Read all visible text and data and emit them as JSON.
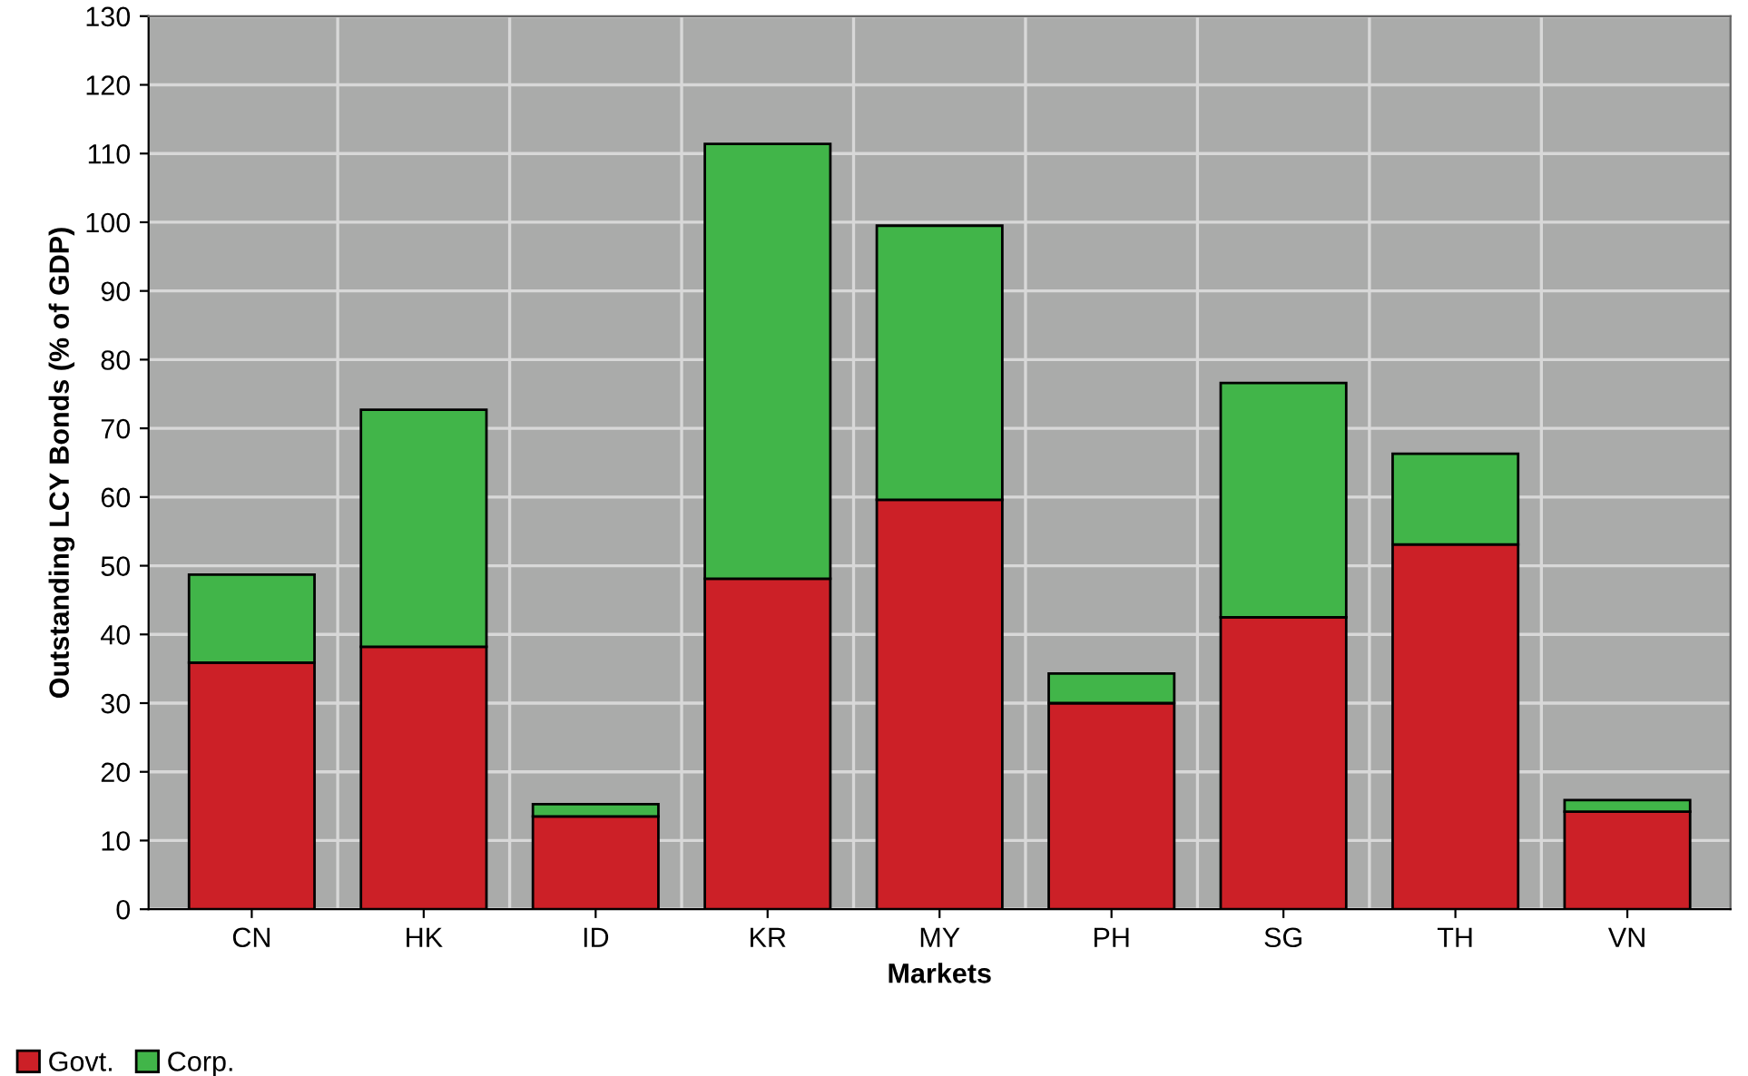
{
  "chart_data": {
    "type": "bar",
    "stacked": true,
    "xlabel": "Markets",
    "ylabel": "Outstanding LCY Bonds (% of GDP)",
    "categories": [
      "CN",
      "HK",
      "ID",
      "KR",
      "MY",
      "PH",
      "SG",
      "TH",
      "VN"
    ],
    "series": [
      {
        "name": "Govt.",
        "color": "#cc2027",
        "values": [
          35.9,
          38.2,
          13.5,
          48.1,
          59.6,
          30.0,
          42.5,
          53.1,
          14.2
        ]
      },
      {
        "name": "Corp.",
        "color": "#41b549",
        "values": [
          12.8,
          34.5,
          1.8,
          63.3,
          39.9,
          4.3,
          34.1,
          13.2,
          1.7
        ]
      }
    ],
    "ylim": [
      0,
      130
    ],
    "yticks": [
      0,
      10,
      20,
      30,
      40,
      50,
      60,
      70,
      80,
      90,
      100,
      110,
      120,
      130
    ],
    "grid": true,
    "legend": "bottom left"
  }
}
